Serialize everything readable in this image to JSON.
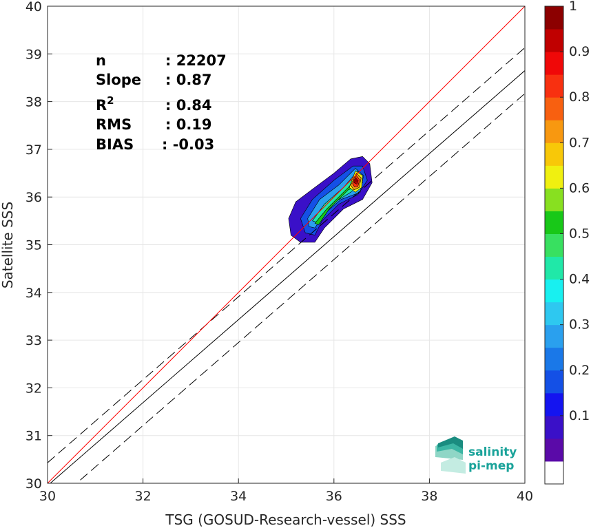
{
  "chart_data": {
    "type": "heatmap",
    "xlabel": "TSG (GOSUD-Research-vessel) SSS",
    "ylabel": "Satellite SSS",
    "xlim": [
      30,
      40
    ],
    "ylim": [
      30,
      40
    ],
    "x_ticks": [
      "30",
      "32",
      "34",
      "36",
      "38",
      "40"
    ],
    "y_ticks": [
      "30",
      "31",
      "32",
      "33",
      "34",
      "35",
      "36",
      "37",
      "38",
      "39",
      "40"
    ],
    "grid": true,
    "stats": [
      {
        "name": "n",
        "value": ": 22207"
      },
      {
        "name": "Slope",
        "value": ": 0.87"
      },
      {
        "name": "R",
        "sup": "2",
        "value": ": 0.84"
      },
      {
        "name": "RMS",
        "value": ": 0.19"
      },
      {
        "name": "BIAS",
        "value": ": -0.03"
      }
    ],
    "identity_line": {
      "slope": 1,
      "intercept": 0,
      "color": "#ff0000"
    },
    "regression_line": {
      "slope": 0.87,
      "intercept": 3.85,
      "color": "#000000"
    },
    "confidence_lines": {
      "offset": 0.48,
      "dash": true
    },
    "density_peak": {
      "x": 36.45,
      "y": 36.35
    },
    "colorbar": {
      "range": [
        0,
        1
      ],
      "tick_labels": [
        "0.1",
        "0.2",
        "0.3",
        "0.4",
        "0.5",
        "0.6",
        "0.7",
        "0.8",
        "0.9",
        "1"
      ],
      "levels": [
        "#ffffff",
        "#5a0aa8",
        "#3a10c8",
        "#1414f0",
        "#1450e6",
        "#1a78e8",
        "#2aa0ee",
        "#2ec8f0",
        "#18f0f0",
        "#20e8a8",
        "#38e060",
        "#18c818",
        "#88e020",
        "#f0f010",
        "#f8c808",
        "#f89810",
        "#f86010",
        "#f83010",
        "#f00808",
        "#c00000",
        "#8c0000"
      ]
    }
  },
  "logo": {
    "line1": "salinity",
    "line2": "pi-mep"
  }
}
